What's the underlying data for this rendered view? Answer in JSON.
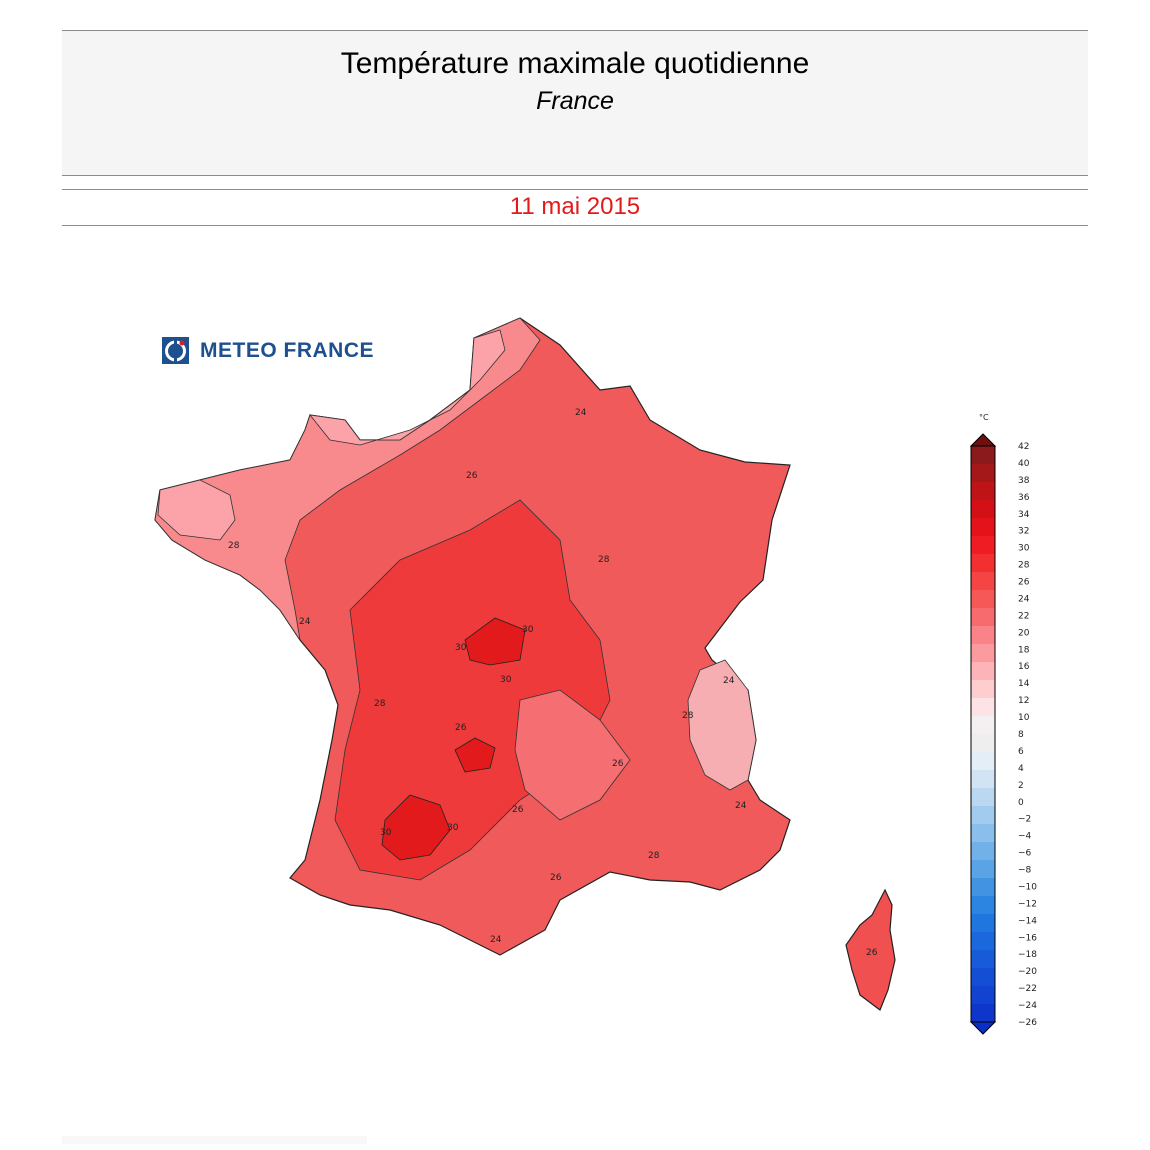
{
  "header": {
    "title": "Température maximale quotidienne",
    "subtitle": "France",
    "date": "11 mai 2015"
  },
  "logo": {
    "text": "METEO FRANCE",
    "icon": "meteo-france-logo-icon"
  },
  "legend": {
    "unit": "°C",
    "ticks": [
      "42",
      "40",
      "38",
      "36",
      "34",
      "32",
      "30",
      "28",
      "26",
      "24",
      "22",
      "20",
      "18",
      "16",
      "14",
      "12",
      "10",
      "8",
      "6",
      "4",
      "2",
      "0",
      "−2",
      "−4",
      "−6",
      "−8",
      "−10",
      "−12",
      "−14",
      "−16",
      "−18",
      "−20",
      "−22",
      "−24",
      "−26"
    ],
    "colors": [
      "#8a1a1c",
      "#a5181a",
      "#be1418",
      "#d21015",
      "#e4121a",
      "#ef1c24",
      "#f23030",
      "#f54444",
      "#f65858",
      "#f76b6e",
      "#f98388",
      "#fb9ba0",
      "#fcb4b8",
      "#fdcdd0",
      "#fde3e5",
      "#f4f0f1",
      "#eeeeee",
      "#e4eef7",
      "#d2e4f4",
      "#bad8f1",
      "#a2cbee",
      "#8abeeb",
      "#72b1e8",
      "#5aa3e5",
      "#4294e3",
      "#2c85e0",
      "#1f76df",
      "#1a68dc",
      "#175bd8",
      "#144ed4",
      "#1242d0",
      "#0f36cb"
    ]
  },
  "map": {
    "regions": [
      "mainland-france",
      "corsica"
    ],
    "contour_labels": [
      "24",
      "26",
      "28",
      "28",
      "30",
      "30",
      "30",
      "30",
      "26",
      "24",
      "28",
      "26",
      "24",
      "28",
      "26",
      "30",
      "28",
      "26",
      "24",
      "24",
      "26"
    ]
  },
  "colors": {
    "accent": "#e31a1c",
    "logo": "#1e4f8e",
    "base_fill": "#f05a5a"
  }
}
